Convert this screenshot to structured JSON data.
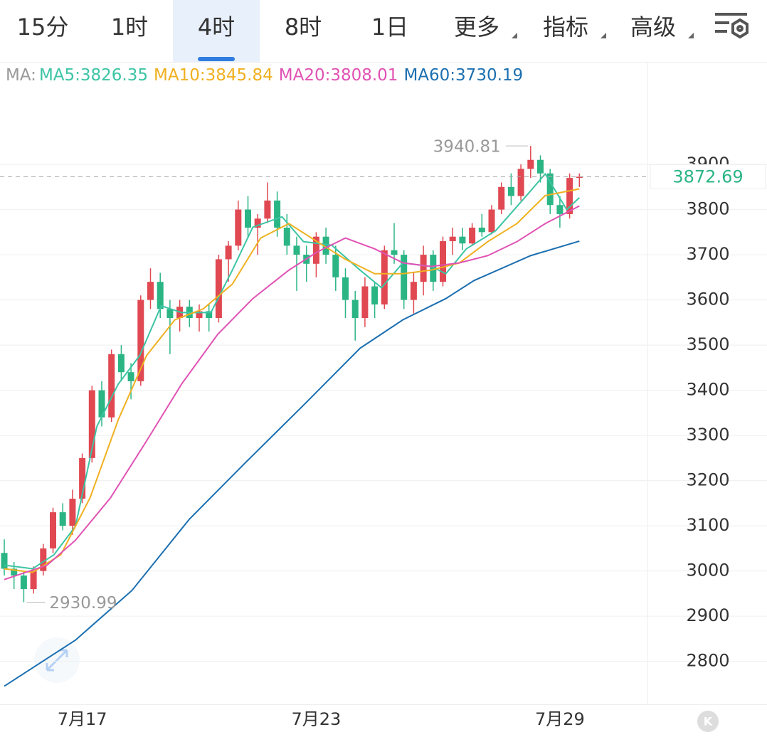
{
  "tabs": [
    "15分",
    "1时",
    "4时",
    "8时",
    "1日",
    "更多",
    "指标",
    "高级"
  ],
  "chart_data": {
    "type": "candlestick",
    "ma_label": "MA:",
    "categories": [
      null,
      null,
      null,
      null,
      null,
      null,
      null,
      null,
      "7月17",
      null,
      null,
      null,
      null,
      null,
      null,
      null,
      null,
      null,
      null,
      null,
      null,
      null,
      null,
      null,
      null,
      null,
      null,
      null,
      null,
      null,
      null,
      null,
      "7月23",
      null,
      null,
      null,
      null,
      null,
      null,
      null,
      null,
      null,
      null,
      null,
      null,
      null,
      null,
      null,
      null,
      null,
      null,
      null,
      null,
      null,
      null,
      null,
      null,
      "7月29",
      null,
      null
    ],
    "open": [
      3040,
      3005,
      2990,
      2960,
      3000,
      3050,
      3130,
      3100,
      3160,
      3250,
      3400,
      3340,
      3480,
      3440,
      3420,
      3600,
      3640,
      3580,
      3560,
      3585,
      3560,
      3575,
      3560,
      3690,
      3720,
      3800,
      3760,
      3780,
      3820,
      3760,
      3720,
      3700,
      3680,
      3740,
      3700,
      3650,
      3600,
      3560,
      3630,
      3590,
      3710,
      3700,
      3600,
      3640,
      3700,
      3640,
      3730,
      3740,
      3725,
      3760,
      3750,
      3800,
      3850,
      3830,
      3890,
      3910,
      3880,
      3810,
      3790,
      3870
    ],
    "high": [
      3070,
      3020,
      3000,
      3010,
      3060,
      3140,
      3150,
      3180,
      3260,
      3410,
      3420,
      3490,
      3500,
      3460,
      3610,
      3670,
      3660,
      3600,
      3600,
      3600,
      3590,
      3590,
      3700,
      3730,
      3820,
      3830,
      3790,
      3860,
      3840,
      3790,
      3740,
      3720,
      3750,
      3760,
      3720,
      3670,
      3620,
      3650,
      3640,
      3720,
      3770,
      3710,
      3660,
      3720,
      3710,
      3740,
      3760,
      3760,
      3770,
      3790,
      3810,
      3860,
      3880,
      3900,
      3940.81,
      3920,
      3890,
      3830,
      3880,
      3880
    ],
    "low": [
      2990,
      2960,
      2930.99,
      2950,
      2990,
      3040,
      3090,
      3080,
      3150,
      3240,
      3320,
      3330,
      3420,
      3380,
      3410,
      3580,
      3560,
      3480,
      3530,
      3540,
      3530,
      3530,
      3550,
      3640,
      3710,
      3740,
      3700,
      3770,
      3740,
      3700,
      3620,
      3640,
      3650,
      3680,
      3620,
      3560,
      3510,
      3540,
      3560,
      3580,
      3680,
      3580,
      3570,
      3610,
      3620,
      3630,
      3700,
      3710,
      3720,
      3740,
      3745,
      3790,
      3810,
      3820,
      3870,
      3860,
      3790,
      3760,
      3780,
      3850
    ],
    "close": [
      3005,
      2990,
      2960,
      3000,
      3050,
      3130,
      3100,
      3160,
      3250,
      3400,
      3340,
      3480,
      3440,
      3420,
      3600,
      3640,
      3580,
      3560,
      3585,
      3560,
      3575,
      3560,
      3690,
      3720,
      3800,
      3760,
      3780,
      3820,
      3760,
      3720,
      3700,
      3680,
      3740,
      3700,
      3650,
      3600,
      3560,
      3630,
      3590,
      3710,
      3700,
      3600,
      3640,
      3700,
      3640,
      3730,
      3740,
      3725,
      3760,
      3750,
      3800,
      3850,
      3830,
      3890,
      3910,
      3880,
      3810,
      3790,
      3870,
      3872.69
    ],
    "up_color": "#e04852",
    "down_color": "#2bb585",
    "lines": [
      {
        "name": "MA5",
        "label": "MA5:3826.35",
        "color": "#3cc4a4",
        "x": [
          0,
          2.9,
          5.1,
          7.3,
          9.5,
          11.7,
          13.9,
          16.1,
          18.2,
          21.2,
          23.4,
          25.5,
          28.5,
          30.7,
          33.6,
          36.5,
          38.7,
          40.9,
          43.8,
          45.3,
          47.4,
          50.4,
          53.3,
          55.5,
          57.7,
          59
        ],
        "values": [
          3013,
          3005,
          3036,
          3099,
          3320,
          3414,
          3477,
          3587,
          3572,
          3572,
          3666,
          3761,
          3784,
          3729,
          3721,
          3666,
          3627,
          3682,
          3674,
          3658,
          3713,
          3753,
          3824,
          3879,
          3800,
          3826.35
        ]
      },
      {
        "name": "MA10",
        "label": "MA10:3845.84",
        "color": "#f0b020",
        "x": [
          0,
          2.9,
          5.8,
          8.8,
          11.7,
          14.6,
          17.5,
          20.4,
          23.4,
          26.3,
          29.2,
          32.1,
          35,
          38,
          40.9,
          43.8,
          46.7,
          49.6,
          52.6,
          55.5,
          59
        ],
        "values": [
          3005,
          2997,
          3036,
          3162,
          3335,
          3477,
          3556,
          3580,
          3635,
          3737,
          3769,
          3729,
          3690,
          3658,
          3658,
          3666,
          3682,
          3729,
          3769,
          3831,
          3845.84
        ]
      },
      {
        "name": "MA20",
        "label": "MA20:3808.01",
        "color": "#e052b4",
        "x": [
          0,
          4.4,
          7.3,
          10.9,
          14.6,
          18.2,
          21.9,
          25.5,
          29.2,
          32.1,
          35,
          38,
          40.9,
          43.8,
          46.7,
          49.6,
          52.6,
          55.5,
          59
        ],
        "values": [
          2981,
          3013,
          3068,
          3162,
          3288,
          3414,
          3524,
          3603,
          3666,
          3706,
          3737,
          3713,
          3682,
          3674,
          3682,
          3698,
          3729,
          3769,
          3808.01
        ]
      },
      {
        "name": "MA60",
        "label": "MA60:3730.19",
        "color": "#1c6fb0",
        "x": [
          0,
          7.3,
          13.1,
          19,
          24.8,
          30.7,
          36.5,
          40.9,
          45.3,
          48.2,
          54,
          59
        ],
        "values": [
          2745,
          2847,
          2957,
          3115,
          3241,
          3367,
          3493,
          3556,
          3603,
          3643,
          3698,
          3730.19
        ]
      }
    ],
    "ylim": [
      2705,
      4130
    ],
    "yticks": [
      2800,
      2900,
      3000,
      3100,
      3200,
      3300,
      3400,
      3500,
      3600,
      3700,
      3800,
      3900
    ],
    "grid": true,
    "last_price": 3872.69,
    "last_color": "#2bb585",
    "max_annotation": {
      "x": 54,
      "value": 3940.81
    },
    "min_annotation": {
      "x": 2,
      "value": 2930.99
    }
  }
}
